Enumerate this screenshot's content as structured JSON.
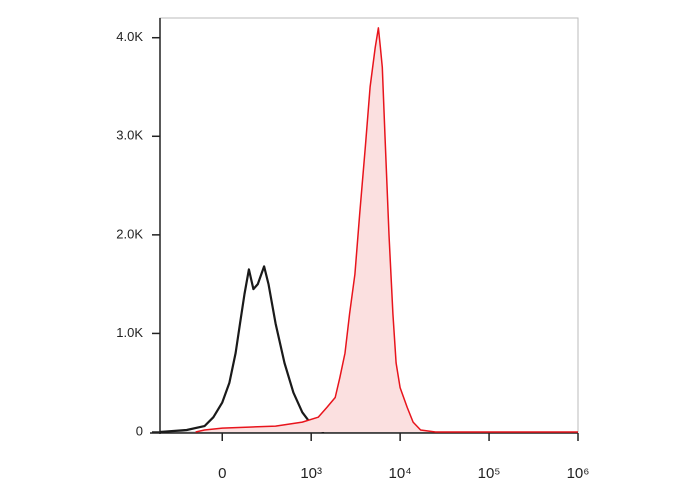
{
  "chart_data": {
    "type": "histogram-overlay",
    "xscale": "biexponential",
    "xlim": [
      -700,
      1000000
    ],
    "ylim": [
      0,
      4200
    ],
    "xticks": [
      0,
      {
        "value": 1000,
        "label": "10³"
      },
      {
        "value": 10000,
        "label": "10⁴"
      },
      {
        "value": 100000,
        "label": "10⁵"
      },
      {
        "value": 1000000,
        "label": "10⁶"
      }
    ],
    "yticks": [
      0,
      {
        "value": 1000,
        "label": "1.0K"
      },
      {
        "value": 2000,
        "label": "2.0K"
      },
      {
        "value": 3000,
        "label": "3.0K"
      },
      {
        "value": 4000,
        "label": "4.0K"
      }
    ],
    "series": [
      {
        "color": "#1a1a1a",
        "x": [
          -700,
          -400,
          -200,
          -100,
          0,
          80,
          150,
          200,
          250,
          300,
          350,
          400,
          470,
          520,
          600,
          700,
          800,
          900,
          1000,
          1200,
          1400
        ],
        "values": [
          0,
          20,
          60,
          150,
          300,
          500,
          800,
          1100,
          1400,
          1650,
          1450,
          1500,
          1680,
          1500,
          1100,
          700,
          400,
          200,
          80,
          20,
          0
        ]
      },
      {
        "color": "#e8141c",
        "fill": "#fbe0e0",
        "x": [
          -300,
          -200,
          0,
          300,
          600,
          900,
          1200,
          1500,
          1860,
          2100,
          2400,
          2700,
          3100,
          3500,
          4070,
          4600,
          5250,
          5700,
          6000,
          6300,
          6760,
          7500,
          8300,
          9000,
          10000,
          12000,
          14000,
          17000,
          25000,
          100000,
          1000000
        ],
        "values": [
          0,
          20,
          40,
          50,
          60,
          100,
          150,
          250,
          350,
          550,
          800,
          1200,
          1600,
          2200,
          2900,
          3500,
          3900,
          4100,
          3900,
          3700,
          3000,
          2000,
          1200,
          700,
          450,
          250,
          100,
          20,
          0,
          0,
          0
        ]
      }
    ]
  }
}
